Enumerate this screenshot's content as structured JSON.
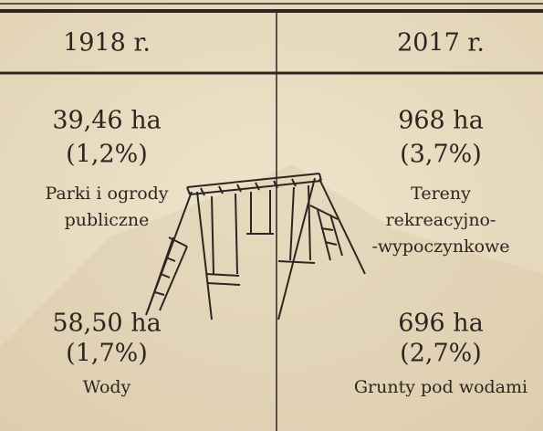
{
  "columns": [
    {
      "year": "1918 r.",
      "items": [
        {
          "value": "39,46 ha",
          "share": "(1,2%)",
          "label_lines": [
            "Parki i ogrody",
            "publiczne"
          ]
        },
        {
          "value": "58,50 ha",
          "share": "(1,7%)",
          "label_lines": [
            "Wody"
          ]
        }
      ]
    },
    {
      "year": "2017 r.",
      "items": [
        {
          "value": "968 ha",
          "share": "(3,7%)",
          "label_lines": [
            "Tereny",
            "rekreacyjno-",
            "-wypoczynkowe"
          ]
        },
        {
          "value": "696 ha",
          "share": "(2,7%)",
          "label_lines": [
            "Grunty pod wodami"
          ]
        }
      ]
    }
  ]
}
